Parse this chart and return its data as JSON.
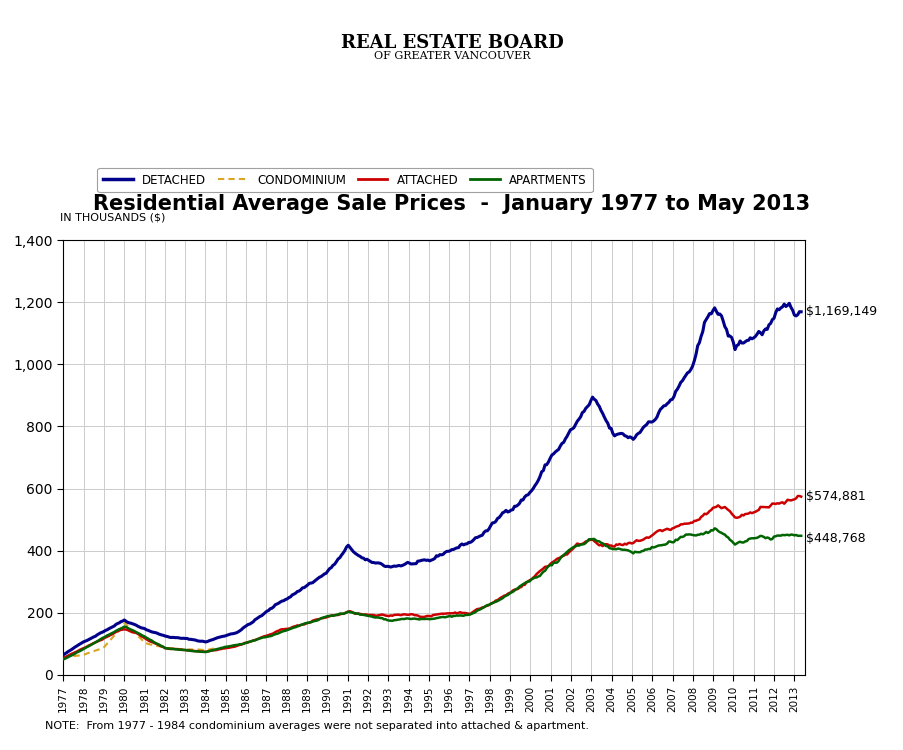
{
  "title": "Residential Average Sale Prices  -  January 1977 to May 2013",
  "ylabel": "IN THOUSANDS ($)",
  "note": "NOTE:  From 1977 - 1984 condominium averages were not separated into attached & apartment.",
  "ylim": [
    0,
    1400
  ],
  "yticks": [
    0,
    200,
    400,
    600,
    800,
    1000,
    1200,
    1400
  ],
  "year_start": 1977,
  "year_end": 2013,
  "end_labels": {
    "detached": "$1,169,149",
    "attached": "$574,881",
    "apartments": "$448,768"
  },
  "colors": {
    "detached": "#00008B",
    "condominium": "#DAA520",
    "attached": "#CC0000",
    "apartments": "#006400"
  },
  "legend_labels": [
    "DETACHED",
    "CONDOMINIUM",
    "ATTACHED",
    "APARTMENTS"
  ],
  "background_color": "#FFFFFF",
  "grid_color": "#CCCCCC",
  "header_line1": "REAL ESTATE BOARD",
  "header_line2": "OF GREATER VANCOUVER"
}
